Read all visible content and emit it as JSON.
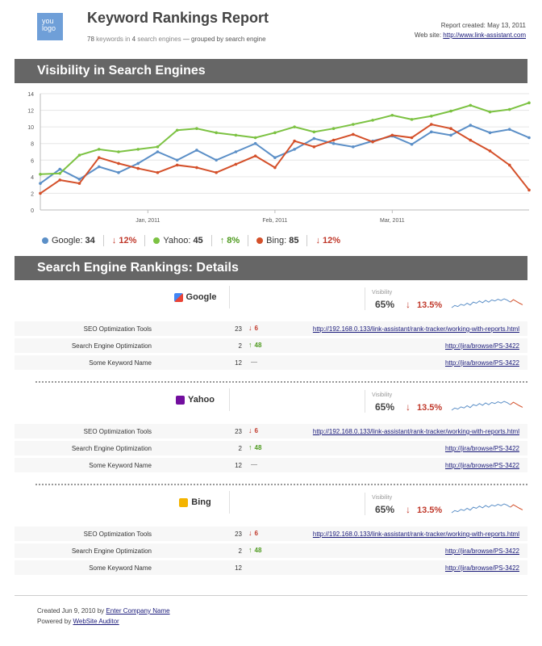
{
  "header": {
    "logo_line1": "you",
    "logo_line2": "logo",
    "title": "Keyword Rankings Report",
    "subtitle_count": "78",
    "subtitle_kw": "keywords in",
    "subtitle_se": "4",
    "subtitle_rest": "search engines",
    "subtitle_group": "— grouped by search engine",
    "report_created": "Report created: May 13, 2011",
    "website_label": "Web site:",
    "website_url": "http://www.link-assistant.com"
  },
  "section1": {
    "title": "Visibility in Search Engines"
  },
  "section2": {
    "title": "Search Engine Rankings: Details"
  },
  "colors": {
    "google": "#5b8fc7",
    "yahoo": "#7cc242",
    "bing": "#d4502a",
    "down": "#c0392b",
    "up": "#4e9a1f"
  },
  "chart_data": {
    "type": "line",
    "ylim": [
      0,
      14
    ],
    "y_ticks": [
      "0",
      "2",
      "4",
      "6",
      "8",
      "10",
      "12",
      "14"
    ],
    "x_tick_labels": [
      "Jan, 2011",
      "Feb, 2011",
      "Mar, 2011"
    ],
    "x": [
      0,
      1,
      2,
      3,
      4,
      5,
      6,
      7,
      8,
      9,
      10,
      11,
      12,
      13,
      14,
      15,
      16,
      17,
      18,
      19,
      20,
      21,
      22,
      23,
      24,
      25
    ],
    "series": [
      {
        "name": "Google",
        "color": "#5b8fc7",
        "values": [
          3.2,
          4.9,
          3.7,
          5.2,
          4.5,
          5.6,
          7.0,
          6.0,
          7.2,
          6.0,
          7.0,
          8.0,
          6.3,
          7.3,
          8.6,
          8.0,
          7.6,
          8.3,
          8.9,
          7.9,
          9.4,
          9.0,
          10.2,
          9.3,
          9.7,
          8.7
        ]
      },
      {
        "name": "Yahoo",
        "color": "#7cc242",
        "values": [
          4.3,
          4.4,
          6.6,
          7.3,
          7.0,
          7.3,
          7.6,
          9.6,
          9.8,
          9.3,
          9.0,
          8.7,
          9.3,
          10.0,
          9.4,
          9.8,
          10.3,
          10.8,
          11.4,
          10.9,
          11.3,
          11.9,
          12.6,
          11.8,
          12.1,
          12.9
        ]
      },
      {
        "name": "Bing",
        "color": "#d4502a",
        "values": [
          2.0,
          3.6,
          3.2,
          6.3,
          5.6,
          5.0,
          4.5,
          5.4,
          5.1,
          4.5,
          5.5,
          6.5,
          5.1,
          8.3,
          7.6,
          8.4,
          9.1,
          8.2,
          9.0,
          8.7,
          10.3,
          9.8,
          8.4,
          7.1,
          5.4,
          2.4
        ]
      }
    ]
  },
  "legend": [
    {
      "name": "Google:",
      "value": "34",
      "dir": "down",
      "arrow": "↓",
      "change": "12%",
      "color": "#5b8fc7"
    },
    {
      "name": "Yahoo:",
      "value": "45",
      "dir": "up",
      "arrow": "↑",
      "change": "8%",
      "color": "#7cc242"
    },
    {
      "name": "Bing:",
      "value": "85",
      "dir": "down",
      "arrow": "↓",
      "change": "12%",
      "color": "#d4502a"
    }
  ],
  "engines": [
    {
      "name": "Google",
      "icon": "google-icon",
      "visibility_label": "Visibility",
      "visibility": "65%",
      "arrow": "↓",
      "change": "13.5%",
      "rows": [
        {
          "keyword": "SEO Optimization Tools",
          "position": "23",
          "arrow": "↓",
          "delta": "6",
          "dir": "down",
          "url": "http://192.168.0.133/link-assistant/rank-tracker/working-with-reports.html"
        },
        {
          "keyword": "Search Engine Optimization",
          "position": "2",
          "arrow": "↑",
          "delta": "48",
          "dir": "up",
          "url": "http://jira/browse/PS-3422"
        },
        {
          "keyword": "Some Keyword Name",
          "position": "12",
          "arrow": "",
          "delta": "—",
          "dir": "none",
          "url": "http://jira/browse/PS-3422"
        }
      ]
    },
    {
      "name": "Yahoo",
      "icon": "yahoo-icon",
      "visibility_label": "Visibility",
      "visibility": "65%",
      "arrow": "↓",
      "change": "13.5%",
      "rows": [
        {
          "keyword": "SEO Optimization Tools",
          "position": "23",
          "arrow": "↓",
          "delta": "6",
          "dir": "down",
          "url": "http://192.168.0.133/link-assistant/rank-tracker/working-with-reports.html"
        },
        {
          "keyword": "Search Engine Optimization",
          "position": "2",
          "arrow": "↑",
          "delta": "48",
          "dir": "up",
          "url": "http://jira/browse/PS-3422"
        },
        {
          "keyword": "Some Keyword Name",
          "position": "12",
          "arrow": "",
          "delta": "—",
          "dir": "none",
          "url": "http://jira/browse/PS-3422"
        }
      ]
    },
    {
      "name": "Bing",
      "icon": "bing-icon",
      "visibility_label": "Visibility",
      "visibility": "65%",
      "arrow": "↓",
      "change": "13.5%",
      "rows": [
        {
          "keyword": "SEO Optimization Tools",
          "position": "23",
          "arrow": "↓",
          "delta": "6",
          "dir": "down",
          "url": "http://192.168.0.133/link-assistant/rank-tracker/working-with-reports.html"
        },
        {
          "keyword": "Search Engine Optimization",
          "position": "2",
          "arrow": "↑",
          "delta": "48",
          "dir": "up",
          "url": "http://jira/browse/PS-3422"
        },
        {
          "keyword": "Some Keyword Name",
          "position": "12",
          "arrow": "",
          "delta": "",
          "dir": "none",
          "url": "http://jira/browse/PS-3422"
        }
      ]
    }
  ],
  "sparklines": {
    "values": [
      3,
      4,
      3.5,
      4.5,
      4,
      5,
      4.2,
      5.5,
      5,
      6,
      5.2,
      6.3,
      5.5,
      6.5,
      6,
      6.8,
      6.2,
      7,
      6.4,
      5.5,
      6.6,
      5.8,
      5,
      4.3
    ]
  },
  "footer": {
    "created_prefix": "Created Jun 9, 2010 by",
    "created_link": "Enter Company Name",
    "powered_prefix": "Powered by",
    "powered_link": "WebSite Auditor"
  }
}
